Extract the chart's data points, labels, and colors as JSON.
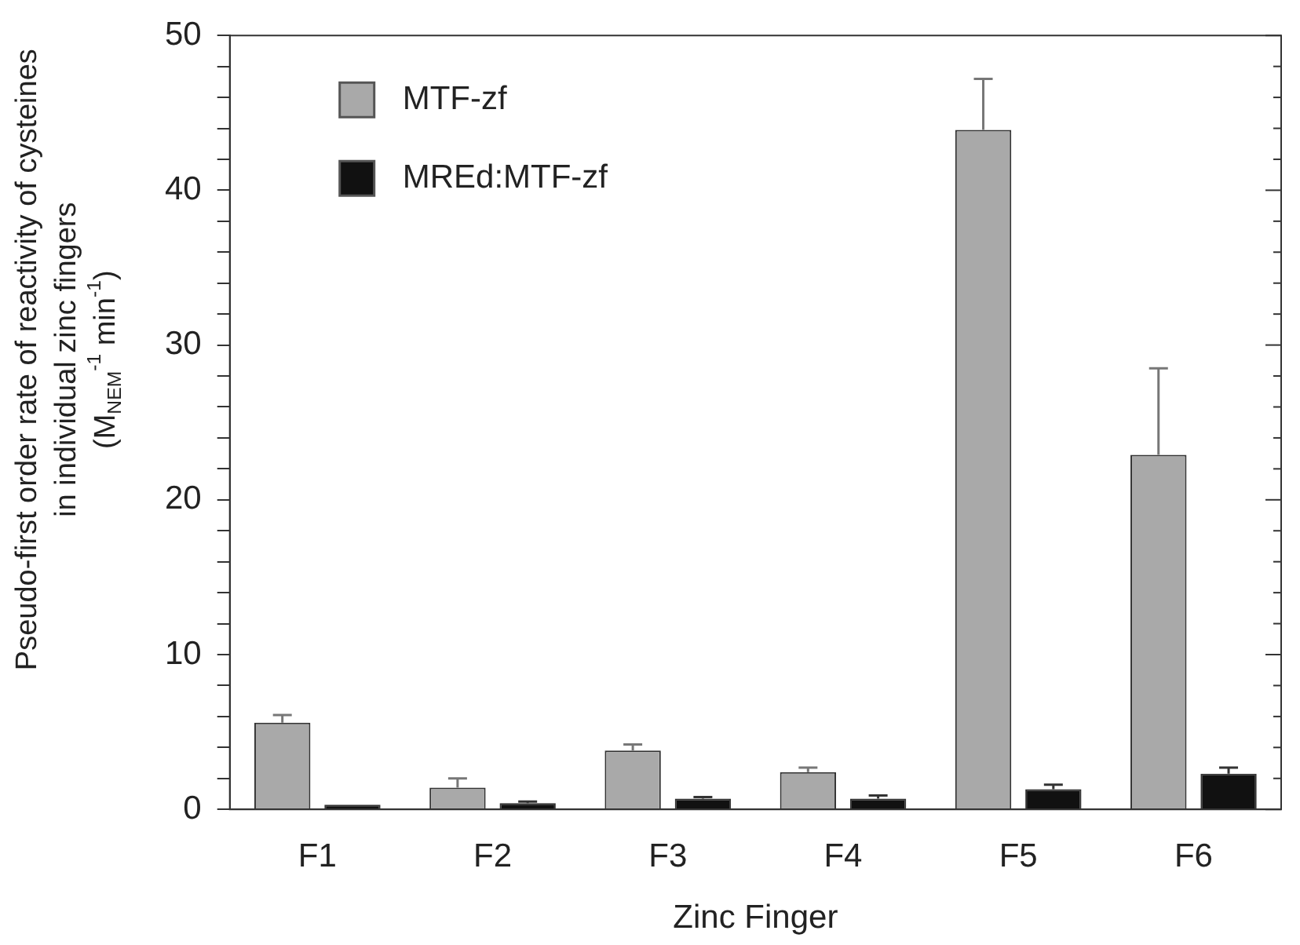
{
  "chart_data": {
    "type": "bar",
    "xlabel": "Zinc Finger",
    "ylabel": "Pseudo-first order rate of reactivity of cysteines\nin individual zinc fingers\n(M$_{NEM}$$^{-1}$ min$^{-1}$)",
    "categories": [
      "F1",
      "F2",
      "F3",
      "F4",
      "F5",
      "F6"
    ],
    "series": [
      {
        "name": "MTF-zf",
        "color": "#a9a9a9",
        "values": [
          5.6,
          1.4,
          3.8,
          2.4,
          43.9,
          22.9
        ],
        "errors": [
          [
            5.6,
            6.1
          ],
          [
            1.4,
            2.0
          ],
          [
            3.8,
            4.2
          ],
          [
            2.4,
            2.7
          ],
          [
            43.9,
            47.2
          ],
          [
            22.9,
            28.5
          ]
        ]
      },
      {
        "name": "MREd:MTF-zf",
        "color": "#111111",
        "values": [
          0.3,
          0.4,
          0.7,
          0.7,
          1.3,
          2.3
        ],
        "errors": [
          null,
          [
            0.4,
            0.5
          ],
          [
            0.7,
            0.8
          ],
          [
            0.7,
            0.9
          ],
          [
            1.3,
            1.6
          ],
          [
            2.3,
            2.7
          ]
        ]
      }
    ],
    "ylim": [
      0,
      50
    ],
    "yticks": [
      0,
      {
        "value": 2,
        "label": null
      },
      {
        "value": 4,
        "label": null
      },
      {
        "value": 6,
        "label": null
      },
      {
        "value": 8,
        "label": null
      },
      10,
      {
        "value": 12,
        "label": null
      },
      {
        "value": 14,
        "label": null
      },
      {
        "value": 16,
        "label": null
      },
      {
        "value": 18,
        "label": null
      },
      20,
      {
        "value": 22,
        "label": null
      },
      {
        "value": 24,
        "label": null
      },
      {
        "value": 26,
        "label": null
      },
      {
        "value": 28,
        "label": null
      },
      30,
      {
        "value": 32,
        "label": null
      },
      {
        "value": 34,
        "label": null
      },
      {
        "value": 36,
        "label": null
      },
      {
        "value": 38,
        "label": null
      },
      40,
      {
        "value": 42,
        "label": null
      },
      {
        "value": 44,
        "label": null
      },
      {
        "value": 46,
        "label": null
      },
      {
        "value": 48,
        "label": null
      },
      50
    ],
    "grid": false,
    "legend": "top left"
  }
}
